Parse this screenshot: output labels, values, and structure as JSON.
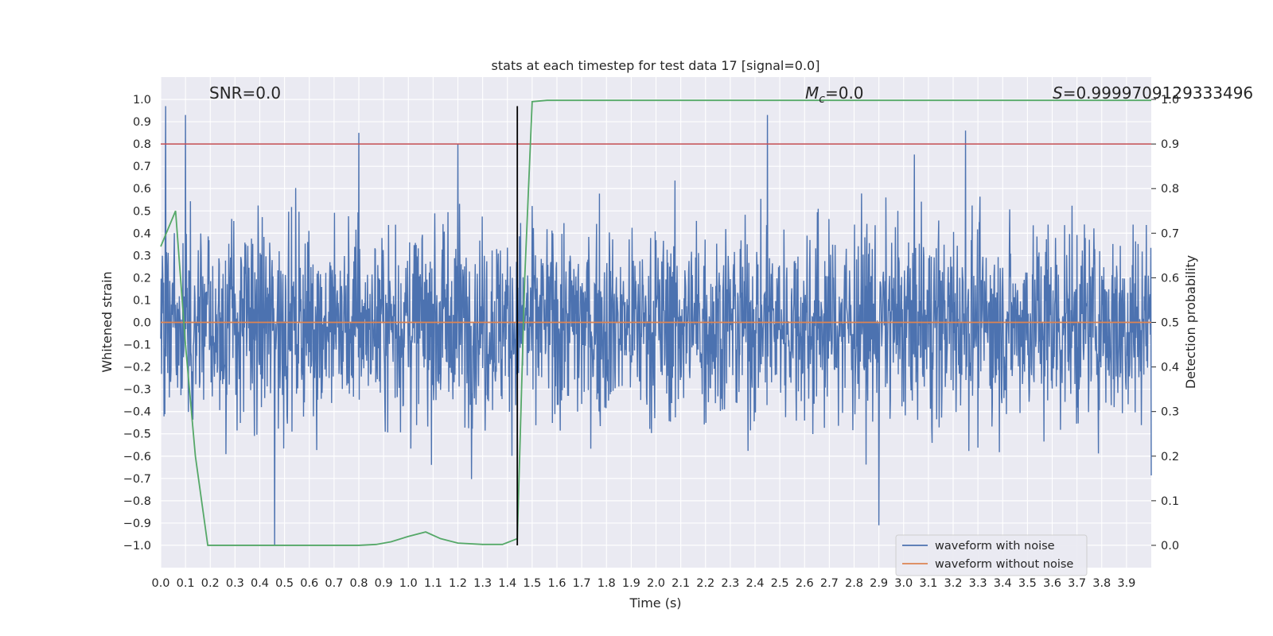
{
  "chart_data": {
    "type": "line",
    "title": "stats at each timestep for test data 17 [signal=0.0]",
    "xlabel": "Time (s)",
    "ylabel_left": "Whitened strain",
    "ylabel_right": "Detection probability",
    "xlim": [
      0.0,
      4.0
    ],
    "ylim_left": [
      -1.1,
      1.1
    ],
    "ylim_right": [
      -0.05,
      1.05
    ],
    "x_ticks": [
      "0.0",
      "0.1",
      "0.2",
      "0.3",
      "0.4",
      "0.5",
      "0.6",
      "0.7",
      "0.8",
      "0.9",
      "1.0",
      "1.1",
      "1.2",
      "1.3",
      "1.4",
      "1.5",
      "1.6",
      "1.7",
      "1.8",
      "1.9",
      "2.0",
      "2.1",
      "2.2",
      "2.3",
      "2.4",
      "2.5",
      "2.6",
      "2.7",
      "2.8",
      "2.9",
      "3.0",
      "3.1",
      "3.2",
      "3.3",
      "3.4",
      "3.5",
      "3.6",
      "3.7",
      "3.8",
      "3.9"
    ],
    "y_ticks_left": [
      "1.0",
      "0.9",
      "0.8",
      "0.7",
      "0.6",
      "0.5",
      "0.4",
      "0.3",
      "0.2",
      "0.1",
      "0.0",
      "−0.1",
      "−0.2",
      "−0.3",
      "−0.4",
      "−0.5",
      "−0.6",
      "−0.7",
      "−0.8",
      "−0.9",
      "−1.0"
    ],
    "y_ticks_right": [
      "1.0",
      "0.9",
      "0.8",
      "0.7",
      "0.6",
      "0.5",
      "0.4",
      "0.3",
      "0.2",
      "0.1",
      "0.0"
    ],
    "grid": true,
    "legend_position": "lower-right",
    "annotations": {
      "snr": "SNR=0.0",
      "mc_prefix": "M",
      "mc_sub": "c",
      "mc_value": "=0.0",
      "s_prefix": "S",
      "s_value": "=0.9999709129333496"
    },
    "series": [
      {
        "name": "waveform with noise",
        "axis": "left",
        "color": "#4c72b0",
        "style": "dense noise, approx. uniform over duration",
        "x_range": [
          0.0,
          4.0
        ],
        "envelope_approx": [
          -1.0,
          0.97
        ],
        "notable_peaks": [
          {
            "x": 0.02,
            "y": 0.97
          },
          {
            "x": 0.1,
            "y": 0.93
          },
          {
            "x": 0.8,
            "y": 0.85
          },
          {
            "x": 1.2,
            "y": 0.8
          },
          {
            "x": 2.45,
            "y": 0.93
          },
          {
            "x": 3.25,
            "y": 0.86
          },
          {
            "x": 0.46,
            "y": -1.0
          },
          {
            "x": 2.9,
            "y": -0.91
          }
        ]
      },
      {
        "name": "waveform without noise",
        "axis": "left",
        "color": "#dd8452",
        "x": [
          0.0,
          4.0
        ],
        "y": [
          0.0,
          0.0
        ]
      },
      {
        "axis": "right",
        "color": "#55a868",
        "x": [
          0.0,
          0.06,
          0.1,
          0.14,
          0.19,
          0.25,
          0.35,
          0.45,
          0.55,
          0.65,
          0.8,
          0.87,
          0.93,
          1.0,
          1.07,
          1.13,
          1.2,
          1.3,
          1.38,
          1.44,
          1.47,
          1.5,
          1.56,
          1.7,
          2.0,
          3.0,
          4.0
        ],
        "y": [
          0.67,
          0.75,
          0.45,
          0.2,
          0.0,
          0.0,
          0.0,
          0.0,
          0.0,
          0.0,
          0.0,
          0.002,
          0.008,
          0.02,
          0.03,
          0.015,
          0.005,
          0.002,
          0.002,
          0.015,
          0.6,
          0.995,
          0.998,
          0.998,
          0.998,
          0.998,
          0.998
        ]
      },
      {
        "axis": "right",
        "color": "#c44e52",
        "style": "horizontal threshold line",
        "y": 0.9
      },
      {
        "axis": "left",
        "color": "#000000",
        "style": "vertical marker line",
        "x": 1.44,
        "y_range": [
          -1.0,
          0.97
        ]
      }
    ]
  }
}
